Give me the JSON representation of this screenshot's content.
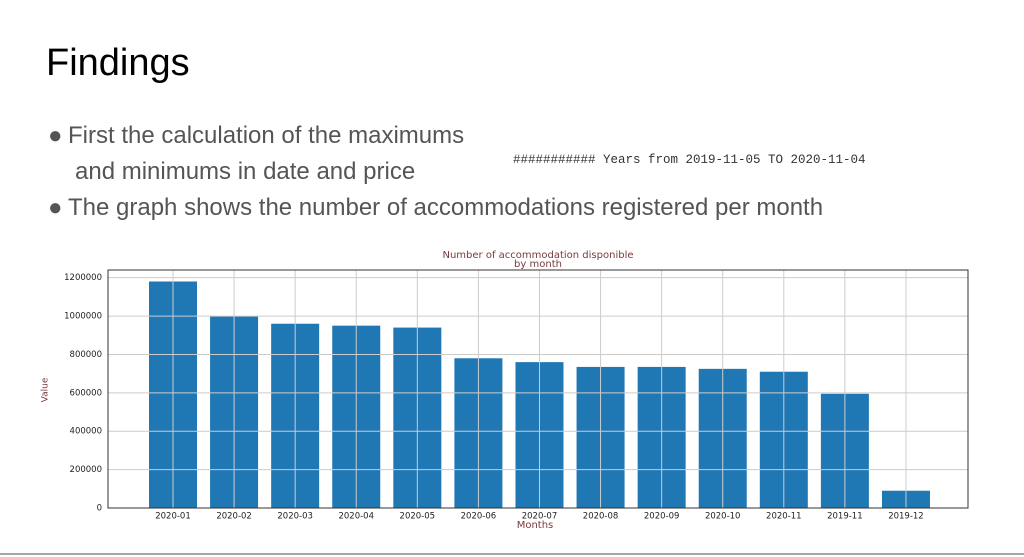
{
  "slide": {
    "title": "Findings",
    "bullets": [
      [
        "First the calculation of the maximums",
        "and minimums in date and price"
      ],
      [
        "The graph shows the number of accommodations registered per month"
      ]
    ],
    "note": "########### Years from 2019-11-05 TO 2020-11-04"
  },
  "chart_data": {
    "type": "bar",
    "title": [
      "Number of accommodation disponible",
      "by month"
    ],
    "x_label": "Months",
    "y_label": "Value",
    "categories": [
      "2020-01",
      "2020-02",
      "2020-03",
      "2020-04",
      "2020-05",
      "2020-06",
      "2020-07",
      "2020-08",
      "2020-09",
      "2020-10",
      "2020-11",
      "2019-11",
      "2019-12"
    ],
    "values": [
      1180000,
      1000000,
      960000,
      950000,
      940000,
      780000,
      760000,
      735000,
      735000,
      725000,
      710000,
      595000,
      90000
    ],
    "color": "#1f77b4",
    "ylim": [
      0,
      1240000
    ],
    "yticks": [
      0,
      200000,
      400000,
      600000,
      800000,
      1000000,
      1200000
    ],
    "grid": true
  }
}
